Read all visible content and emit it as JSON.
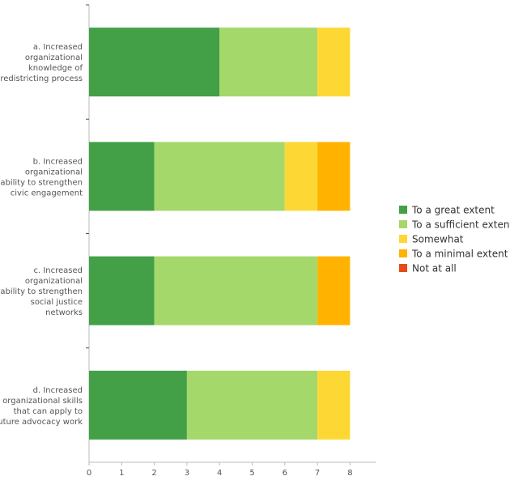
{
  "chart_data": {
    "type": "bar",
    "orientation": "horizontal",
    "stacked": true,
    "categories": [
      [
        "a. Increased",
        "organizational",
        "knowledge of",
        "redistricting process"
      ],
      [
        "b. Increased",
        "organizational",
        "ability to strengthen",
        "civic engagement"
      ],
      [
        "c. Increased",
        "organizational",
        "ability to strengthen",
        "social justice",
        "networks"
      ],
      [
        "d. Increased",
        "organizational skills",
        "that can apply to",
        "future advocacy work"
      ]
    ],
    "series": [
      {
        "name": "To a great extent",
        "color": "#43a047",
        "values": [
          4,
          2,
          2,
          3
        ]
      },
      {
        "name": "To a sufficient extent",
        "color": "#a5d86b",
        "values": [
          3,
          4,
          5,
          4
        ]
      },
      {
        "name": "Somewhat",
        "color": "#fdd835",
        "values": [
          1,
          1,
          0,
          1
        ]
      },
      {
        "name": "To a minimal extent",
        "color": "#ffb300",
        "values": [
          0,
          1,
          1,
          0
        ]
      },
      {
        "name": "Not at all",
        "color": "#e64a19",
        "values": [
          0,
          0,
          0,
          0
        ]
      }
    ],
    "x_ticks": [
      "0",
      "1",
      "2",
      "3",
      "4",
      "5",
      "6",
      "7",
      "8"
    ],
    "xlim": [
      0,
      8.8
    ],
    "grid": false,
    "legend_position": "right"
  }
}
